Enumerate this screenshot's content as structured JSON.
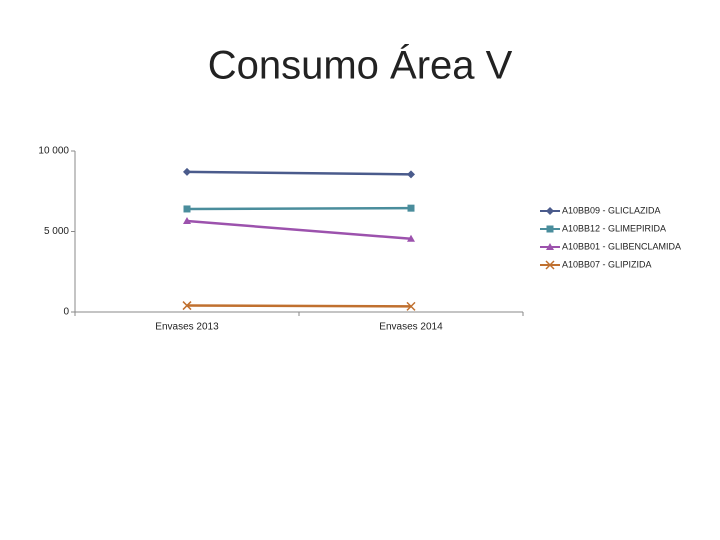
{
  "chart_data": {
    "type": "line",
    "title": "Consumo Área V",
    "categories": [
      "Envases 2013",
      "Envases 2014"
    ],
    "series": [
      {
        "name": "A10BB09 - GLICLAZIDA",
        "color": "#4a5b8c",
        "marker": "diamond",
        "values": [
          8700,
          8550
        ]
      },
      {
        "name": "A10BB12 - GLIMEPIRIDA",
        "color": "#4a8d9c",
        "marker": "square",
        "values": [
          6400,
          6450
        ]
      },
      {
        "name": "A10BB01 - GLIBENCLAMIDA",
        "color": "#9c52ad",
        "marker": "triangle",
        "values": [
          5650,
          4550
        ]
      },
      {
        "name": "A10BB07 - GLIPIZIDA",
        "color": "#c0702f",
        "marker": "x",
        "values": [
          400,
          350
        ]
      }
    ],
    "ylim": [
      0,
      10000
    ],
    "yticks": [
      0,
      {
        "value": 5000,
        "label": "5 000"
      },
      {
        "value": 10000,
        "label": "10 000"
      }
    ],
    "grid": false
  }
}
